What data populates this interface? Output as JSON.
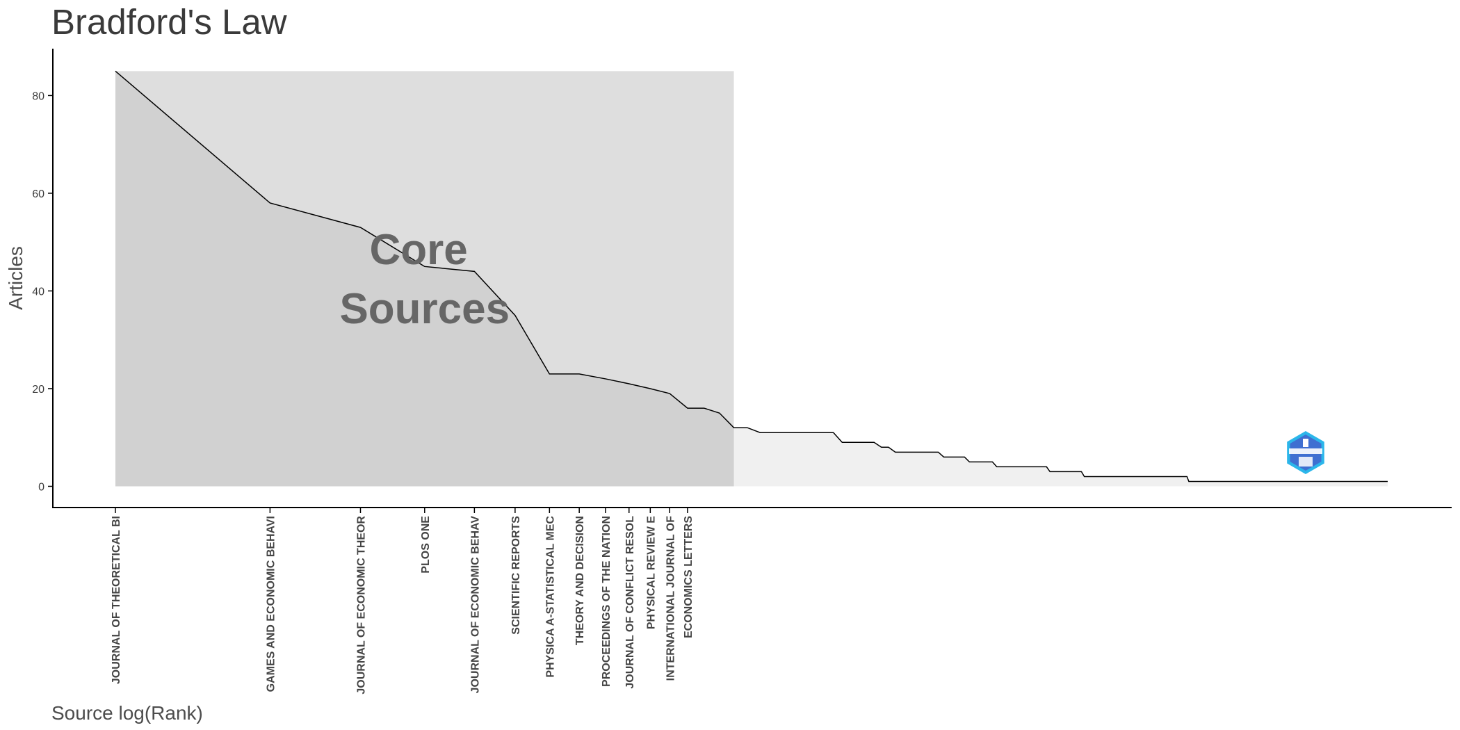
{
  "chart_data": {
    "type": "area",
    "title": "Bradford's Law",
    "xlabel": "Source log(Rank)",
    "ylabel": "Articles",
    "x_scale": "log",
    "ylim": [
      -4,
      89
    ],
    "y_ticks": [
      0,
      20,
      40,
      60,
      80
    ],
    "grid": false,
    "legend": "none",
    "annotation": [
      "Core",
      "Sources"
    ],
    "zone_label": "Core Sources",
    "core_zone": {
      "rank_from": 1,
      "rank_to": 16
    },
    "core_sources": [
      {
        "rank": 1,
        "label": "JOURNAL OF THEORETICAL BI",
        "articles": 85
      },
      {
        "rank": 2,
        "label": "GAMES AND ECONOMIC BEHAVI",
        "articles": 58
      },
      {
        "rank": 3,
        "label": "JOURNAL OF ECONOMIC THEOR",
        "articles": 53
      },
      {
        "rank": 4,
        "label": "PLOS ONE",
        "articles": 45
      },
      {
        "rank": 5,
        "label": "JOURNAL OF ECONOMIC BEHAV",
        "articles": 44
      },
      {
        "rank": 6,
        "label": "SCIENTIFIC REPORTS",
        "articles": 35
      },
      {
        "rank": 7,
        "label": "PHYSICA A-STATISTICAL MEC",
        "articles": 23
      },
      {
        "rank": 8,
        "label": "THEORY AND DECISION",
        "articles": 23
      },
      {
        "rank": 9,
        "label": "PROCEEDINGS OF THE NATION",
        "articles": 22
      },
      {
        "rank": 10,
        "label": "JOURNAL OF CONFLICT RESOL",
        "articles": 21
      },
      {
        "rank": 11,
        "label": "PHYSICAL REVIEW E",
        "articles": 20
      },
      {
        "rank": 12,
        "label": "INTERNATIONAL JOURNAL OF",
        "articles": 19
      },
      {
        "rank": 13,
        "label": "ECONOMICS LETTERS",
        "articles": 16
      }
    ],
    "series": [
      {
        "ranks": [
          1,
          2,
          3,
          4,
          5,
          6,
          7,
          8,
          9,
          10,
          11,
          12,
          13,
          14,
          15,
          16,
          17,
          18,
          19,
          20,
          21,
          22,
          23,
          24,
          25,
          26,
          27,
          28,
          29,
          30,
          31,
          32,
          33,
          34,
          35,
          36,
          37,
          38,
          39,
          40,
          41,
          42,
          43,
          44,
          45,
          46,
          47,
          48,
          49,
          50,
          51,
          52,
          53,
          54,
          55,
          56,
          57,
          58,
          59,
          60,
          61,
          62,
          63,
          64,
          65,
          66,
          67,
          68,
          69,
          70,
          71,
          72,
          73,
          74,
          75,
          76,
          77,
          78,
          79,
          80,
          81,
          82,
          83,
          84,
          85,
          86,
          87,
          88,
          89,
          90,
          91,
          92,
          93,
          94,
          95,
          96,
          97,
          98,
          99,
          100,
          101,
          102,
          103,
          104,
          105,
          106,
          107,
          108,
          109,
          110,
          111,
          112,
          113,
          114,
          115,
          116,
          117,
          118,
          119,
          120,
          121,
          122,
          123,
          124,
          125,
          126,
          127,
          128,
          129,
          130,
          131,
          132,
          133,
          134,
          135,
          136,
          137,
          138,
          139,
          140,
          141,
          142,
          143,
          144,
          145,
          146,
          147,
          148,
          149,
          150,
          151,
          152,
          153,
          154,
          155,
          156,
          157,
          158,
          159,
          160,
          161,
          162,
          163,
          164,
          165,
          166,
          167,
          168,
          169,
          170,
          171,
          172,
          173,
          174,
          175,
          176,
          177,
          178,
          179,
          180,
          181,
          182,
          183,
          184,
          185,
          186,
          187,
          188,
          189,
          190,
          191,
          192,
          193,
          194,
          195,
          196,
          197,
          198,
          199,
          200,
          201,
          202,
          203,
          204,
          205,
          206,
          207,
          208,
          209,
          210,
          211,
          212,
          213,
          214,
          215,
          216,
          217,
          218,
          219,
          220,
          221,
          222,
          223,
          224,
          225,
          226,
          227,
          228,
          229,
          230,
          231,
          232,
          233,
          234,
          235,
          236,
          237,
          238,
          239,
          240,
          241,
          242,
          243,
          244,
          245,
          246,
          247,
          248,
          249,
          250,
          251,
          252,
          253,
          254,
          255,
          256,
          257,
          258,
          259,
          260,
          261,
          262,
          263,
          264,
          265,
          266,
          267,
          268,
          269,
          270,
          271,
          272,
          273,
          274,
          275,
          276,
          277,
          278,
          279,
          280,
          281,
          282,
          283,
          284,
          285,
          286,
          287,
          288,
          289,
          290,
          291,
          292,
          293,
          294,
          295,
          296,
          297,
          298,
          299,
          300
        ],
        "articles": [
          85,
          58,
          53,
          45,
          44,
          35,
          23,
          23,
          22,
          21,
          20,
          19,
          16,
          16,
          15,
          12,
          12,
          11,
          11,
          11,
          11,
          11,
          11,
          11,
          11,
          9,
          9,
          9,
          9,
          9,
          8,
          8,
          7,
          7,
          7,
          7,
          7,
          7,
          7,
          7,
          6,
          6,
          6,
          6,
          6,
          5,
          5,
          5,
          5,
          5,
          5,
          4,
          4,
          4,
          4,
          4,
          4,
          4,
          4,
          4,
          4,
          4,
          4,
          4,
          4,
          3,
          3,
          3,
          3,
          3,
          3,
          3,
          3,
          3,
          3,
          3,
          2,
          2,
          2,
          2,
          2,
          2,
          2,
          2,
          2,
          2,
          2,
          2,
          2,
          2,
          2,
          2,
          2,
          2,
          2,
          2,
          2,
          2,
          2,
          2,
          2,
          2,
          2,
          2,
          2,
          2,
          2,
          2,
          2,
          2,
          2,
          2,
          2,
          2,
          2,
          2,
          2,
          2,
          2,
          2,
          2,
          2,
          1,
          1,
          1,
          1,
          1,
          1,
          1,
          1,
          1,
          1,
          1,
          1,
          1,
          1,
          1,
          1,
          1,
          1,
          1,
          1,
          1,
          1,
          1,
          1,
          1,
          1,
          1,
          1,
          1,
          1,
          1,
          1,
          1,
          1,
          1,
          1,
          1,
          1,
          1,
          1,
          1,
          1,
          1,
          1,
          1,
          1,
          1,
          1,
          1,
          1,
          1,
          1,
          1,
          1,
          1,
          1,
          1,
          1,
          1,
          1,
          1,
          1,
          1,
          1,
          1,
          1,
          1,
          1,
          1,
          1,
          1,
          1,
          1,
          1,
          1,
          1,
          1,
          1,
          1,
          1,
          1,
          1,
          1,
          1,
          1,
          1,
          1,
          1,
          1,
          1,
          1,
          1,
          1,
          1,
          1,
          1,
          1,
          1,
          1,
          1,
          1,
          1,
          1,
          1,
          1,
          1,
          1,
          1,
          1,
          1,
          1,
          1,
          1,
          1,
          1,
          1,
          1,
          1,
          1,
          1,
          1,
          1,
          1,
          1,
          1,
          1,
          1,
          1,
          1,
          1,
          1,
          1,
          1,
          1,
          1,
          1,
          1,
          1,
          1,
          1,
          1,
          1,
          1,
          1,
          1,
          1,
          1,
          1,
          1,
          1,
          1,
          1,
          1,
          1,
          1,
          1,
          1,
          1,
          1,
          1,
          1,
          1,
          1,
          1,
          1,
          1,
          1,
          1,
          1,
          1,
          1,
          1,
          1,
          1,
          1,
          1,
          1,
          1,
          1,
          1,
          1,
          1,
          1,
          1,
          1,
          1,
          1,
          1,
          1,
          1,
          1,
          1,
          1,
          1,
          1,
          1,
          1,
          1,
          1
        ]
      }
    ]
  },
  "colors": {
    "line": "#000000",
    "core_band": "#dedede",
    "core_area": "#d1d1d1",
    "tail_area": "#f0f0f0",
    "axis": "#000000",
    "annotation": "#666666",
    "logo_outer": "#3f6fd1",
    "logo_inner": "#2bb6ea"
  },
  "watermark": {
    "icon": "bibliometrix-hexagon-logo"
  }
}
